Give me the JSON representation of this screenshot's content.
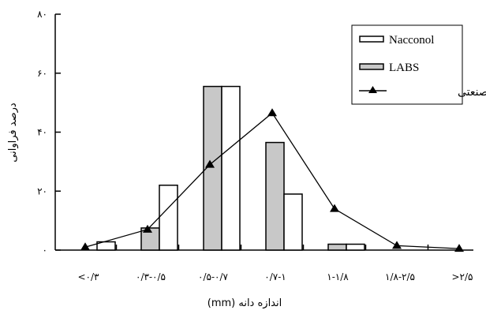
{
  "chart_data": {
    "type": "bar",
    "title": "",
    "xlabel": "اندازه دانه (mm)",
    "ylabel": "درصد فراوانی",
    "ylim": [
      0,
      80
    ],
    "yticks": [
      "۰",
      "۲۰",
      "۴۰",
      "۶۰",
      "۸۰"
    ],
    "ytick_values": [
      0,
      20,
      40,
      60,
      80
    ],
    "categories": [
      "<۰/۳",
      "۰/۳-۰/۵",
      "۰/۵-۰/۷",
      "۰/۷-۱",
      "۱-۱/۸",
      "۱/۸-۲/۵",
      ">۲/۵"
    ],
    "series": [
      {
        "name": "Nacconol",
        "kind": "bar",
        "color": "#ffffff",
        "values": [
          2.8,
          22,
          55.5,
          19,
          2,
          0,
          0
        ]
      },
      {
        "name": "LABS",
        "kind": "bar",
        "color": "#c8c8c8",
        "values": [
          0,
          7.5,
          55.5,
          36.5,
          2,
          0,
          0
        ]
      },
      {
        "name": "واحدصنعتی",
        "kind": "line",
        "marker": "triangle",
        "color": "#000000",
        "values": [
          1,
          7,
          29,
          46.5,
          14,
          1.5,
          0.5
        ]
      }
    ],
    "legend_position": "top-right",
    "grid": false
  }
}
